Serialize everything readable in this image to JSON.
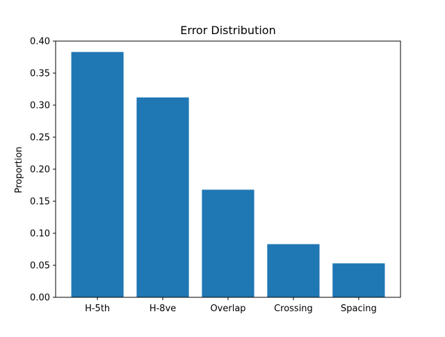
{
  "chart_data": {
    "type": "bar",
    "title": "Error Distribution",
    "xlabel": "",
    "ylabel": "Proportion",
    "categories": [
      "H-5th",
      "H-8ve",
      "Overlap",
      "Crossing",
      "Spacing"
    ],
    "values": [
      0.383,
      0.312,
      0.168,
      0.083,
      0.053
    ],
    "ylim": [
      0,
      0.4
    ],
    "yticks": [
      "0.00",
      "0.05",
      "0.10",
      "0.15",
      "0.20",
      "0.25",
      "0.30",
      "0.35",
      "0.40"
    ],
    "grid": false,
    "legend": "none",
    "bar_color": "#1f77b4"
  }
}
